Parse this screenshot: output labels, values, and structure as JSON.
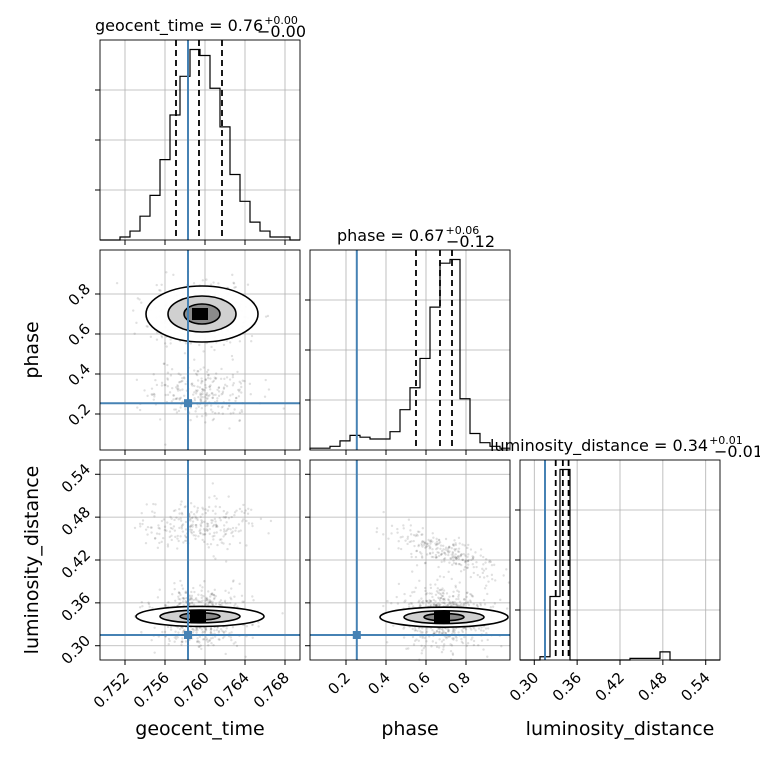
{
  "chart_data": {
    "type": "corner",
    "parameters": [
      "geocent_time",
      "phase",
      "luminosity_distance"
    ],
    "titles": [
      {
        "parameter": "geocent_time",
        "text": "geocent_time = 0.76",
        "plus": "+0.00",
        "minus": "−0.00"
      },
      {
        "parameter": "phase",
        "text": "phase = 0.67",
        "plus": "+0.06",
        "minus": "−0.12"
      },
      {
        "parameter": "luminosity_distance",
        "text": "luminosity_distance = 0.34",
        "plus": "+0.01",
        "minus": "−0.01"
      }
    ],
    "ranges": {
      "geocent_time": [
        0.7495,
        0.7695
      ],
      "phase": [
        0.02,
        1.02
      ],
      "luminosity_distance": [
        0.28,
        0.56
      ]
    },
    "truths": {
      "geocent_time": 0.7583,
      "phase": 0.254,
      "luminosity_distance": 0.315
    },
    "quantiles": {
      "geocent_time": [
        0.7571,
        0.7594,
        0.7617
      ],
      "phase": [
        0.55,
        0.67,
        0.73
      ],
      "luminosity_distance": [
        0.33,
        0.34,
        0.348
      ]
    },
    "ticks": {
      "geocent_time": [
        "0.752",
        "0.756",
        "0.760",
        "0.764",
        "0.768"
      ],
      "phase": [
        "0.2",
        "0.4",
        "0.6",
        "0.8"
      ],
      "luminosity_distance": [
        "0.30",
        "0.36",
        "0.42",
        "0.48",
        "0.54"
      ]
    },
    "hist_geocent_time": {
      "edges": [
        0.7495,
        0.7505,
        0.7515,
        0.7525,
        0.7535,
        0.7545,
        0.7555,
        0.7565,
        0.7575,
        0.7585,
        0.7595,
        0.7605,
        0.7615,
        0.7625,
        0.7635,
        0.7645,
        0.7655,
        0.7665,
        0.7675,
        0.7685,
        0.7695
      ],
      "counts": [
        0,
        0,
        1,
        3,
        8,
        15,
        27,
        42,
        55,
        64,
        62,
        51,
        38,
        22,
        13,
        6,
        3,
        1,
        1,
        0
      ]
    },
    "hist_phase": {
      "edges": [
        0.02,
        0.07,
        0.12,
        0.17,
        0.22,
        0.27,
        0.32,
        0.37,
        0.42,
        0.47,
        0.52,
        0.57,
        0.62,
        0.67,
        0.72,
        0.77,
        0.82,
        0.87,
        0.92,
        0.97,
        1.02
      ],
      "counts": [
        1,
        1,
        2,
        5,
        8,
        7,
        6,
        6,
        10,
        22,
        34,
        50,
        78,
        102,
        104,
        28,
        9,
        4,
        2,
        1
      ]
    },
    "hist_luminosity_distance": {
      "edges": [
        0.28,
        0.294,
        0.308,
        0.322,
        0.336,
        0.35,
        0.364,
        0.378,
        0.392,
        0.406,
        0.42,
        0.434,
        0.448,
        0.462,
        0.476,
        0.49,
        0.504,
        0.518,
        0.532,
        0.546,
        0.56
      ],
      "counts": [
        0,
        0,
        2,
        39,
        117,
        0,
        0,
        0,
        0,
        0,
        0,
        1,
        1,
        1,
        5,
        0,
        0,
        0,
        0,
        0
      ]
    },
    "contours": {
      "phase_vs_geocent_time": {
        "x": 0.7597,
        "y": 0.7
      },
      "luminosity_distance_vs_geocent_time": {
        "x": 0.7595,
        "y": 0.341
      },
      "luminosity_distance_vs_phase": {
        "x": 0.69,
        "y": 0.34
      }
    }
  }
}
